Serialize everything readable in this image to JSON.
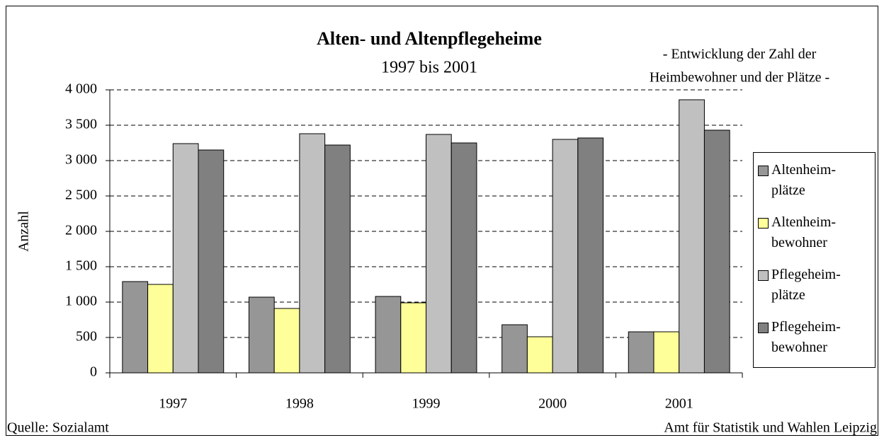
{
  "chart_data": {
    "type": "bar",
    "title": "Alten- und Altenpflegeheime",
    "subtitle": "1997 bis 2001",
    "annotation": [
      "- Entwicklung der Zahl der",
      "Heimbewohner und der Plätze -"
    ],
    "y_label": "Anzahl",
    "source": "Quelle: Sozialamt",
    "credit": "Amt für Statistik und Wahlen Leipzig",
    "categories": [
      "1997",
      "1998",
      "1999",
      "2000",
      "2001"
    ],
    "series": [
      {
        "name": "Altenheim-\nplätze",
        "color": "#969696",
        "values": [
          1290,
          1070,
          1080,
          680,
          580
        ]
      },
      {
        "name": "Altenheim-\nbewohner",
        "color": "#ffff99",
        "values": [
          1250,
          910,
          990,
          510,
          580
        ]
      },
      {
        "name": "Pflegeheim-\nplätze",
        "color": "#c0c0c0",
        "values": [
          3240,
          3380,
          3370,
          3300,
          3860
        ]
      },
      {
        "name": "Pflegeheim-\nbewohner",
        "color": "#808080",
        "values": [
          3150,
          3220,
          3250,
          3320,
          3430
        ]
      }
    ],
    "ylim": [
      0,
      4000
    ],
    "yticks": [
      0,
      500,
      {
        "value": 1000,
        "label": "1 000"
      },
      {
        "value": 1500,
        "label": "1 500"
      },
      {
        "value": 2000,
        "label": "2 000"
      },
      {
        "value": 2500,
        "label": "2 500"
      },
      {
        "value": 3000,
        "label": "3 000"
      },
      {
        "value": 3500,
        "label": "3 500"
      },
      {
        "value": 4000,
        "label": "4 000"
      }
    ],
    "grid": true
  }
}
